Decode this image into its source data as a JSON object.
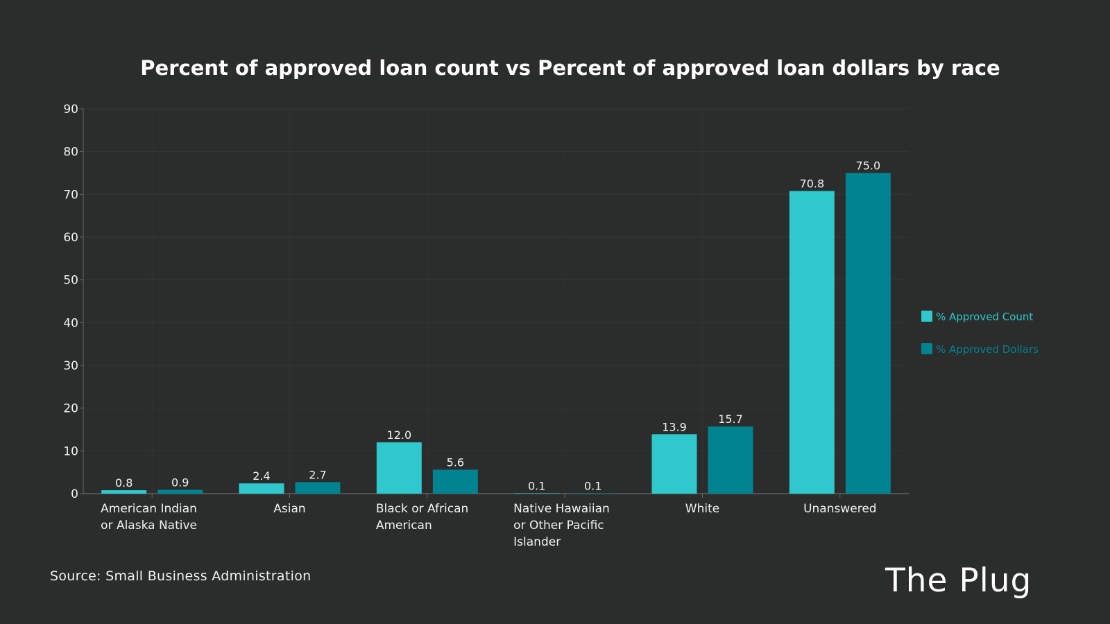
{
  "chart_data": {
    "type": "bar",
    "title": "Percent of approved loan count vs Percent of approved loan dollars by race",
    "xlabel": "",
    "ylabel": "",
    "ylim": [
      0,
      90
    ],
    "yticks": [
      0,
      10,
      20,
      30,
      40,
      50,
      60,
      70,
      80,
      90
    ],
    "grid": true,
    "legend_position": "right",
    "categories": [
      [
        "American Indian",
        "or Alaska Native"
      ],
      [
        "Asian"
      ],
      [
        "Black or African",
        "American"
      ],
      [
        "Native Hawaiian",
        "or Other Pacific",
        "Islander"
      ],
      [
        "White"
      ],
      [
        "Unanswered"
      ]
    ],
    "series": [
      {
        "name": "% Approved Count",
        "color": "#2ec8cd",
        "values": [
          0.8,
          2.4,
          12.0,
          0.1,
          13.9,
          70.8
        ],
        "labels": [
          "0.8",
          "2.4",
          "12.0",
          "0.1",
          "13.9",
          "70.8"
        ]
      },
      {
        "name": "% Approved Dollars",
        "color": "#028391",
        "values": [
          0.9,
          2.7,
          5.6,
          0.1,
          15.7,
          75.0
        ],
        "labels": [
          "0.9",
          "2.7",
          "5.6",
          "0.1",
          "15.7",
          "75.0"
        ]
      }
    ]
  },
  "footer": {
    "source": "Source: Small Business Administration",
    "brand": "The Plug"
  }
}
